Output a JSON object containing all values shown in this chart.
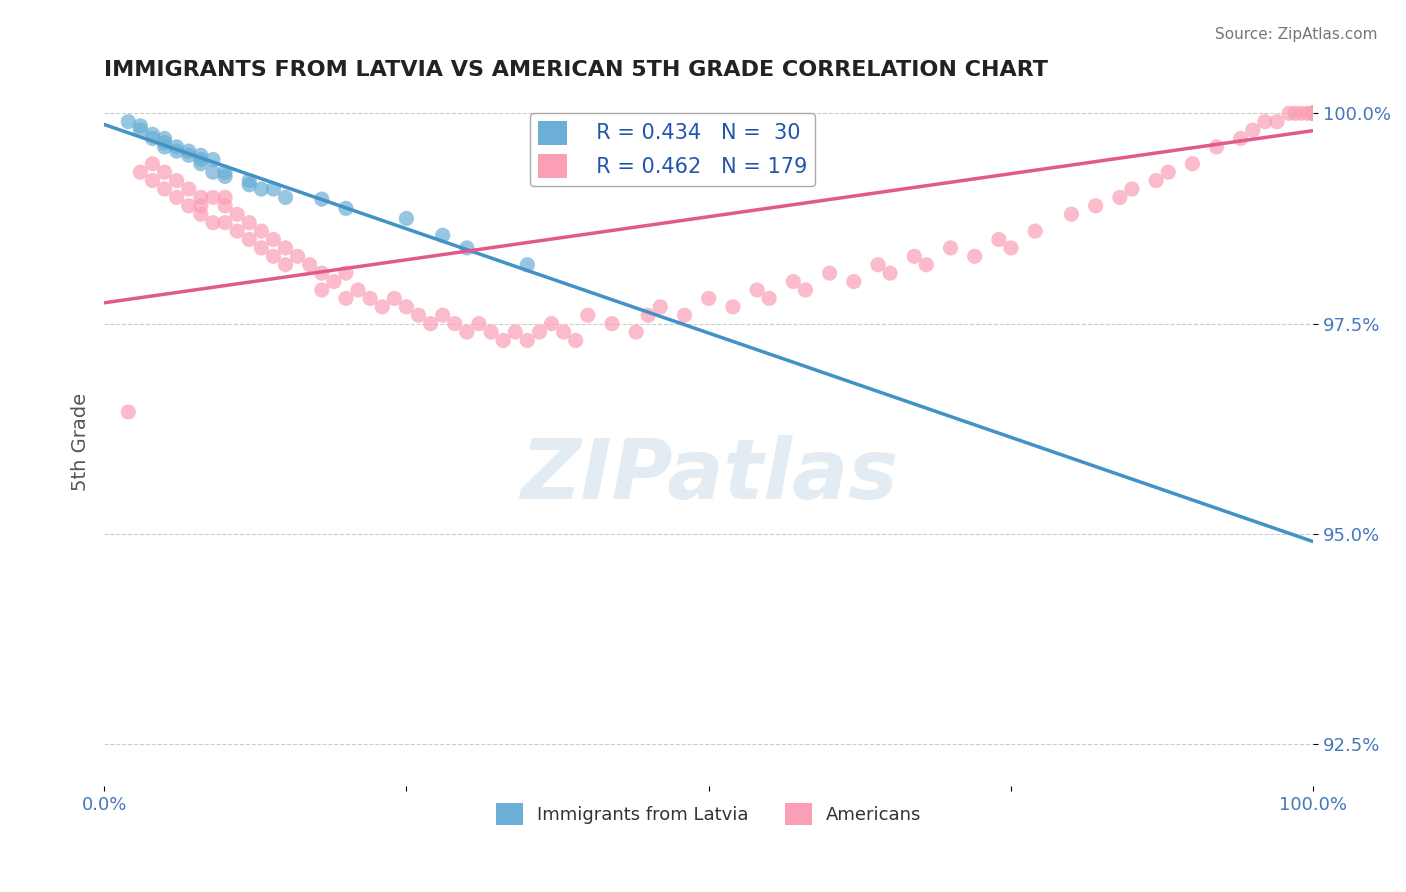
{
  "title": "IMMIGRANTS FROM LATVIA VS AMERICAN 5TH GRADE CORRELATION CHART",
  "source_text": "Source: ZipAtlas.com",
  "xlabel": "",
  "ylabel": "5th Grade",
  "xlim": [
    0.0,
    1.0
  ],
  "ylim": [
    0.92,
    1.002
  ],
  "yticks": [
    0.925,
    0.95,
    0.975,
    1.0
  ],
  "ytick_labels": [
    "92.5%",
    "95.0%",
    "97.5%",
    "100.0%"
  ],
  "xticks": [
    0.0,
    0.25,
    0.5,
    0.75,
    1.0
  ],
  "xtick_labels": [
    "0.0%",
    "",
    "",
    "",
    "100.0%"
  ],
  "legend_r1": "R = 0.434",
  "legend_n1": "N =  30",
  "legend_r2": "R = 0.462",
  "legend_n2": "N = 179",
  "blue_color": "#6baed6",
  "pink_color": "#fa9fb5",
  "line_blue": "#4292c6",
  "line_pink": "#e05a8a",
  "watermark": "ZIPatlas",
  "background_color": "#ffffff",
  "grid_color": "#cccccc",
  "title_color": "#222222",
  "axis_label_color": "#4477bb",
  "blue_scatter_x": [
    0.02,
    0.03,
    0.03,
    0.04,
    0.04,
    0.05,
    0.05,
    0.05,
    0.06,
    0.06,
    0.07,
    0.07,
    0.08,
    0.08,
    0.08,
    0.09,
    0.09,
    0.1,
    0.1,
    0.12,
    0.12,
    0.13,
    0.14,
    0.15,
    0.18,
    0.2,
    0.25,
    0.28,
    0.3,
    0.35
  ],
  "blue_scatter_y": [
    0.999,
    0.9985,
    0.998,
    0.997,
    0.9975,
    0.9965,
    0.997,
    0.996,
    0.996,
    0.9955,
    0.9955,
    0.995,
    0.994,
    0.9945,
    0.995,
    0.9945,
    0.993,
    0.993,
    0.9925,
    0.992,
    0.9915,
    0.991,
    0.991,
    0.99,
    0.9898,
    0.9887,
    0.9875,
    0.9855,
    0.984,
    0.982
  ],
  "pink_scatter_x": [
    0.02,
    0.03,
    0.04,
    0.04,
    0.05,
    0.05,
    0.06,
    0.06,
    0.07,
    0.07,
    0.08,
    0.08,
    0.08,
    0.09,
    0.09,
    0.1,
    0.1,
    0.1,
    0.11,
    0.11,
    0.12,
    0.12,
    0.13,
    0.13,
    0.14,
    0.14,
    0.15,
    0.15,
    0.16,
    0.17,
    0.18,
    0.18,
    0.19,
    0.2,
    0.2,
    0.21,
    0.22,
    0.23,
    0.24,
    0.25,
    0.26,
    0.27,
    0.28,
    0.29,
    0.3,
    0.31,
    0.32,
    0.33,
    0.34,
    0.35,
    0.36,
    0.37,
    0.38,
    0.39,
    0.4,
    0.42,
    0.44,
    0.45,
    0.46,
    0.48,
    0.5,
    0.52,
    0.54,
    0.55,
    0.57,
    0.58,
    0.6,
    0.62,
    0.64,
    0.65,
    0.67,
    0.68,
    0.7,
    0.72,
    0.74,
    0.75,
    0.77,
    0.8,
    0.82,
    0.84,
    0.85,
    0.87,
    0.88,
    0.9,
    0.92,
    0.94,
    0.95,
    0.96,
    0.97,
    0.98,
    0.985,
    0.99,
    0.995,
    1.0,
    1.0,
    1.0,
    1.0,
    1.0,
    1.0,
    1.0,
    1.0,
    1.0,
    1.0,
    1.0,
    1.0,
    1.0,
    1.0,
    1.0,
    1.0,
    1.0,
    1.0,
    1.0,
    1.0,
    1.0,
    1.0,
    1.0,
    1.0,
    1.0,
    1.0,
    1.0,
    1.0,
    1.0,
    1.0,
    1.0,
    1.0,
    1.0,
    1.0,
    1.0,
    1.0,
    1.0,
    1.0,
    1.0,
    1.0,
    1.0,
    1.0,
    1.0,
    1.0,
    1.0,
    1.0,
    1.0,
    1.0,
    1.0,
    1.0,
    1.0,
    1.0,
    1.0,
    1.0,
    1.0,
    1.0,
    1.0,
    1.0,
    1.0,
    1.0,
    1.0,
    1.0,
    1.0,
    1.0,
    1.0,
    1.0,
    1.0,
    1.0,
    1.0,
    1.0,
    1.0,
    1.0,
    1.0,
    1.0,
    1.0,
    1.0,
    1.0,
    1.0,
    1.0,
    1.0,
    1.0,
    1.0
  ],
  "pink_scatter_y": [
    0.9645,
    0.993,
    0.994,
    0.992,
    0.993,
    0.991,
    0.992,
    0.99,
    0.991,
    0.989,
    0.99,
    0.988,
    0.989,
    0.99,
    0.987,
    0.99,
    0.989,
    0.987,
    0.988,
    0.986,
    0.987,
    0.985,
    0.986,
    0.984,
    0.985,
    0.983,
    0.984,
    0.982,
    0.983,
    0.982,
    0.981,
    0.979,
    0.98,
    0.981,
    0.978,
    0.979,
    0.978,
    0.977,
    0.978,
    0.977,
    0.976,
    0.975,
    0.976,
    0.975,
    0.974,
    0.975,
    0.974,
    0.973,
    0.974,
    0.973,
    0.974,
    0.975,
    0.974,
    0.973,
    0.976,
    0.975,
    0.974,
    0.976,
    0.977,
    0.976,
    0.978,
    0.977,
    0.979,
    0.978,
    0.98,
    0.979,
    0.981,
    0.98,
    0.982,
    0.981,
    0.983,
    0.982,
    0.984,
    0.983,
    0.985,
    0.984,
    0.986,
    0.988,
    0.989,
    0.99,
    0.991,
    0.992,
    0.993,
    0.994,
    0.996,
    0.997,
    0.998,
    0.999,
    0.999,
    1.0,
    1.0,
    1.0,
    1.0,
    1.0,
    1.0,
    1.0,
    1.0,
    1.0,
    1.0,
    1.0,
    1.0,
    1.0,
    1.0,
    1.0,
    1.0,
    1.0,
    1.0,
    1.0,
    1.0,
    1.0,
    1.0,
    1.0,
    1.0,
    1.0,
    1.0,
    1.0,
    1.0,
    1.0,
    1.0,
    1.0,
    1.0,
    1.0,
    1.0,
    1.0,
    1.0,
    1.0,
    1.0,
    1.0,
    1.0,
    1.0,
    1.0,
    1.0,
    1.0,
    1.0,
    1.0,
    1.0,
    1.0,
    1.0,
    1.0,
    1.0,
    1.0,
    1.0,
    1.0,
    1.0,
    1.0,
    1.0,
    1.0,
    1.0,
    1.0,
    1.0,
    1.0,
    1.0,
    1.0,
    1.0,
    1.0,
    1.0,
    1.0,
    1.0,
    1.0,
    1.0,
    1.0,
    1.0,
    1.0,
    1.0,
    1.0,
    1.0,
    1.0,
    1.0,
    1.0,
    1.0,
    1.0,
    1.0,
    1.0,
    1.0,
    1.0
  ]
}
